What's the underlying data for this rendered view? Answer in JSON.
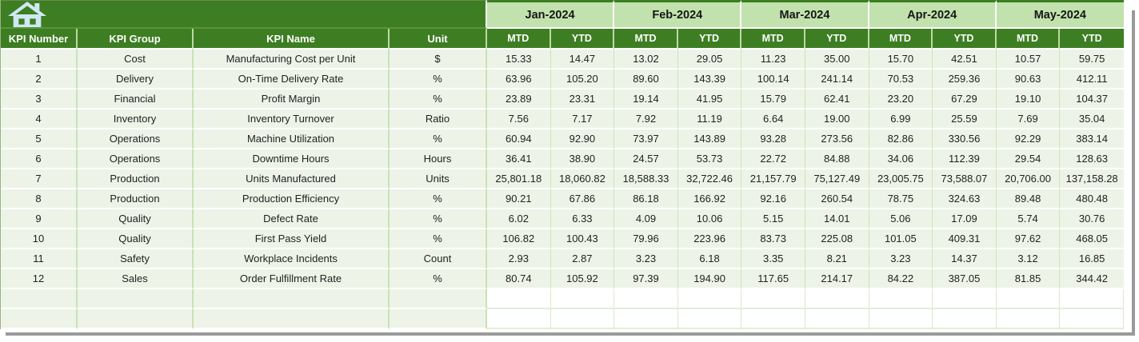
{
  "toolbar": {
    "home_icon": "home"
  },
  "table": {
    "corner_headers": [
      "KPI Number",
      "KPI Group",
      "KPI Name",
      "Unit"
    ],
    "month_headers": [
      "Jan-2024",
      "Feb-2024",
      "Mar-2024",
      "Apr-2024",
      "May-2024"
    ],
    "period_headers": [
      "MTD",
      "YTD"
    ],
    "rows": [
      {
        "kpi_number": "1",
        "kpi_group": "Cost",
        "kpi_name": "Manufacturing Cost per Unit",
        "unit": "$",
        "values": [
          "15.33",
          "14.47",
          "13.02",
          "29.05",
          "11.23",
          "35.00",
          "15.70",
          "42.51",
          "10.57",
          "59.75"
        ]
      },
      {
        "kpi_number": "2",
        "kpi_group": "Delivery",
        "kpi_name": "On-Time Delivery Rate",
        "unit": "%",
        "values": [
          "63.96",
          "105.20",
          "89.60",
          "143.39",
          "100.14",
          "241.14",
          "70.53",
          "259.36",
          "90.63",
          "412.11"
        ]
      },
      {
        "kpi_number": "3",
        "kpi_group": "Financial",
        "kpi_name": "Profit Margin",
        "unit": "%",
        "values": [
          "23.89",
          "23.31",
          "19.14",
          "41.95",
          "15.79",
          "62.41",
          "23.20",
          "67.29",
          "19.10",
          "104.37"
        ]
      },
      {
        "kpi_number": "4",
        "kpi_group": "Inventory",
        "kpi_name": "Inventory Turnover",
        "unit": "Ratio",
        "values": [
          "7.56",
          "7.17",
          "7.92",
          "11.19",
          "6.64",
          "19.00",
          "6.99",
          "25.59",
          "7.69",
          "35.04"
        ]
      },
      {
        "kpi_number": "5",
        "kpi_group": "Operations",
        "kpi_name": "Machine Utilization",
        "unit": "%",
        "values": [
          "60.94",
          "92.90",
          "73.97",
          "143.89",
          "93.28",
          "273.56",
          "82.86",
          "330.56",
          "92.29",
          "383.14"
        ]
      },
      {
        "kpi_number": "6",
        "kpi_group": "Operations",
        "kpi_name": "Downtime Hours",
        "unit": "Hours",
        "values": [
          "36.41",
          "38.90",
          "24.57",
          "53.73",
          "22.72",
          "84.88",
          "34.06",
          "112.39",
          "29.54",
          "128.63"
        ]
      },
      {
        "kpi_number": "7",
        "kpi_group": "Production",
        "kpi_name": "Units Manufactured",
        "unit": "Units",
        "values": [
          "25,801.18",
          "18,060.82",
          "18,588.33",
          "32,722.46",
          "21,157.79",
          "75,127.49",
          "23,005.75",
          "73,588.07",
          "20,706.00",
          "137,158.28"
        ]
      },
      {
        "kpi_number": "8",
        "kpi_group": "Production",
        "kpi_name": "Production Efficiency",
        "unit": "%",
        "values": [
          "90.21",
          "67.86",
          "86.18",
          "166.92",
          "92.16",
          "260.54",
          "78.75",
          "324.63",
          "89.48",
          "480.48"
        ]
      },
      {
        "kpi_number": "9",
        "kpi_group": "Quality",
        "kpi_name": "Defect Rate",
        "unit": "%",
        "values": [
          "6.02",
          "6.33",
          "4.09",
          "10.06",
          "5.15",
          "14.01",
          "5.06",
          "17.09",
          "5.74",
          "30.76"
        ]
      },
      {
        "kpi_number": "10",
        "kpi_group": "Quality",
        "kpi_name": "First Pass Yield",
        "unit": "%",
        "values": [
          "106.82",
          "100.43",
          "79.96",
          "223.96",
          "83.73",
          "225.08",
          "101.05",
          "409.31",
          "97.62",
          "468.05"
        ]
      },
      {
        "kpi_number": "11",
        "kpi_group": "Safety",
        "kpi_name": "Workplace Incidents",
        "unit": "Count",
        "values": [
          "2.93",
          "2.87",
          "3.23",
          "6.18",
          "3.35",
          "8.21",
          "3.23",
          "14.37",
          "3.12",
          "16.85"
        ]
      },
      {
        "kpi_number": "12",
        "kpi_group": "Sales",
        "kpi_name": "Order Fulfillment Rate",
        "unit": "%",
        "values": [
          "80.74",
          "105.92",
          "97.39",
          "194.90",
          "117.65",
          "214.17",
          "84.22",
          "387.05",
          "81.85",
          "344.42"
        ]
      }
    ],
    "empty_row_count": 2
  },
  "colors": {
    "dark_green": "#3d7e22",
    "light_green_band": "#c1e2ad",
    "row_background": "#edf4e7",
    "header_text": "#ffffff",
    "data_text": "#222222",
    "home_icon_fill": "#cfe8f3",
    "shadow": "#9a9a9a"
  }
}
